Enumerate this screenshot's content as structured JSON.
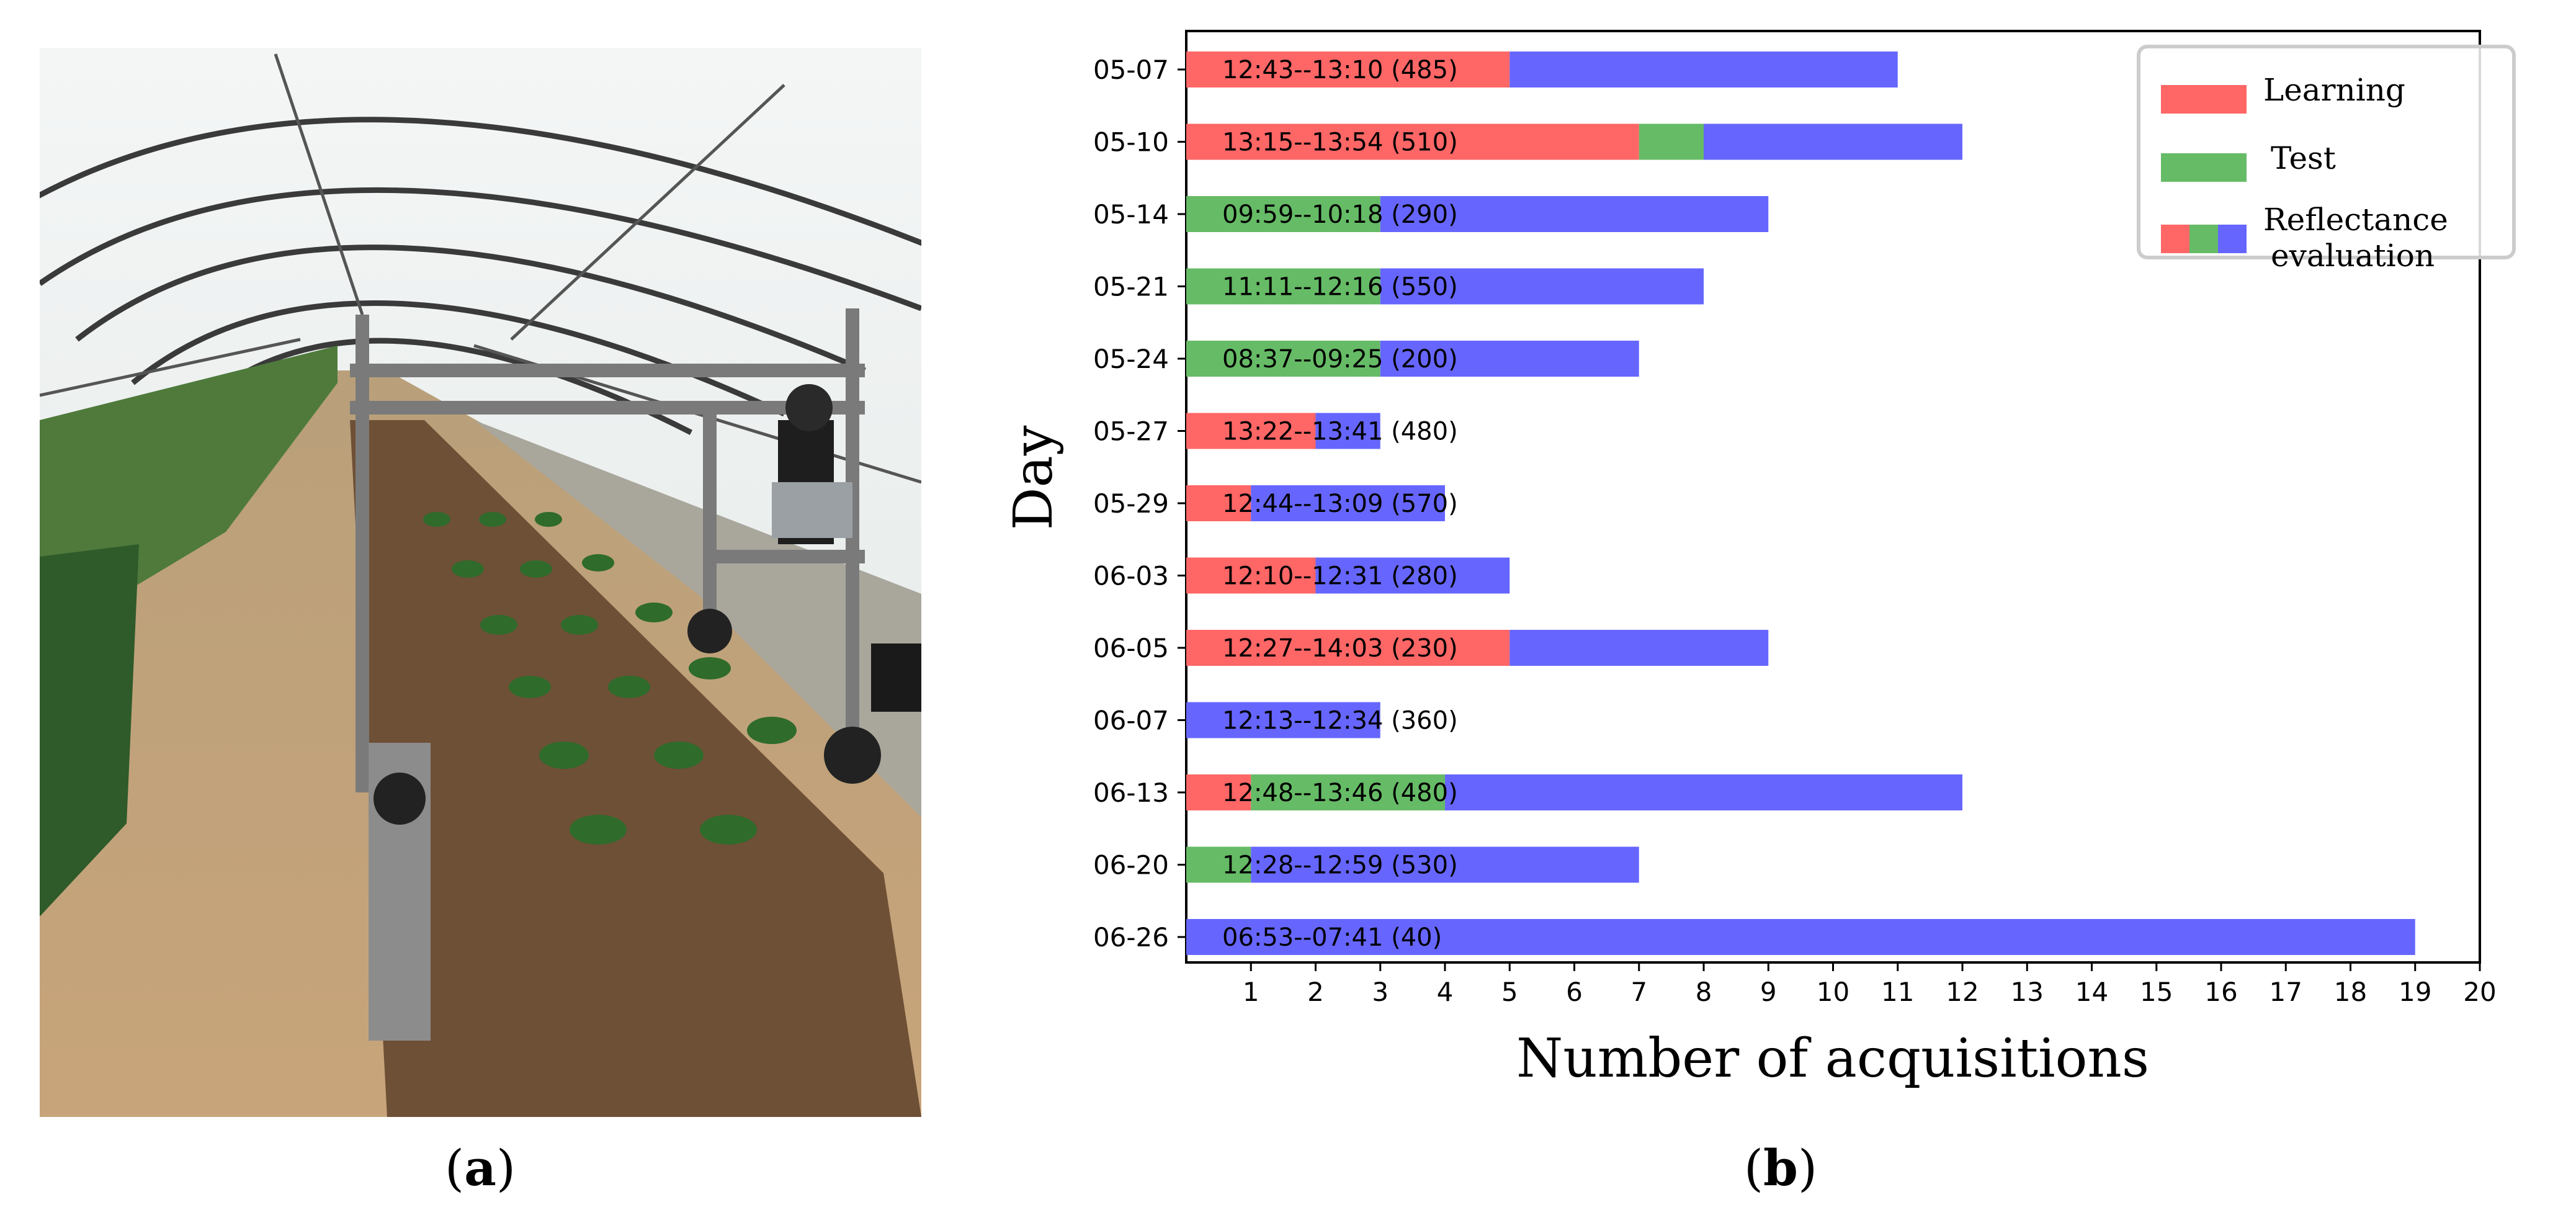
{
  "panels": {
    "a": {
      "caption_open": "(",
      "caption_letter": "a",
      "caption_close": ")"
    },
    "b": {
      "caption_open": "(",
      "caption_letter": "b",
      "caption_close": ")"
    }
  },
  "photo": {
    "icon": "greenhouse-robot-photo"
  },
  "colors": {
    "learning": "#ff6666",
    "test": "#66bb66",
    "reflectance": "#6666ff"
  },
  "chart_data": {
    "type": "bar",
    "orientation": "horizontal",
    "stacked": true,
    "xlabel": "Number of acquisitions",
    "ylabel": "Day",
    "xlim": [
      0,
      20
    ],
    "xticks": [
      1,
      2,
      3,
      4,
      5,
      6,
      7,
      8,
      9,
      10,
      11,
      12,
      13,
      14,
      15,
      16,
      17,
      18,
      19,
      20
    ],
    "grid": false,
    "legend_position": "top-right",
    "legend": [
      {
        "label": "Learning",
        "colors": [
          "learning"
        ]
      },
      {
        "label": "Test",
        "colors": [
          "test"
        ]
      },
      {
        "label": "Reflectance evaluation",
        "colors": [
          "learning",
          "test",
          "reflectance"
        ]
      }
    ],
    "categories": [
      "05-07",
      "05-10",
      "05-14",
      "05-21",
      "05-24",
      "05-27",
      "05-29",
      "06-03",
      "06-05",
      "06-07",
      "06-13",
      "06-20",
      "06-26"
    ],
    "series": [
      {
        "name": "Learning",
        "color": "learning",
        "values": [
          5,
          7,
          0,
          0,
          0,
          2,
          1,
          2,
          5,
          0,
          1,
          0,
          0
        ]
      },
      {
        "name": "Test",
        "color": "test",
        "values": [
          0,
          1,
          3,
          3,
          3,
          0,
          0,
          0,
          0,
          0,
          3,
          1,
          0
        ]
      },
      {
        "name": "Reflectance evaluation",
        "color": "reflectance",
        "values": [
          6,
          4,
          6,
          5,
          4,
          1,
          3,
          3,
          4,
          3,
          8,
          6,
          19
        ]
      }
    ],
    "bar_labels": [
      "12:43--13:10 (485)",
      "13:15--13:54 (510)",
      "09:59--10:18 (290)",
      "11:11--12:16 (550)",
      "08:37--09:25 (200)",
      "13:22--13:41 (480)",
      "12:44--13:09 (570)",
      "12:10--12:31 (280)",
      "12:27--14:03 (230)",
      "12:13--12:34 (360)",
      "12:48--13:46 (480)",
      "12:28--12:59 (530)",
      "06:53--07:41 (40)"
    ]
  }
}
